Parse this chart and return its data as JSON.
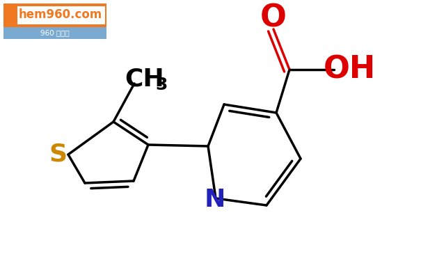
{
  "bg_color": "#ffffff",
  "bond_color": "#000000",
  "sulfur_color": "#cc8800",
  "nitrogen_color": "#2222bb",
  "oxygen_color": "#dd0000",
  "logo_orange": "#f07820",
  "logo_blue_bg": "#7aaad0",
  "logo_text": "hem960.com",
  "logo_subtext": "960 化工网",
  "ch3_label": "CH",
  "ch3_sub": "3",
  "s_label": "S",
  "n_label": "N",
  "o_label": "O",
  "oh_label": "OH",
  "bond_lw": 2.5
}
